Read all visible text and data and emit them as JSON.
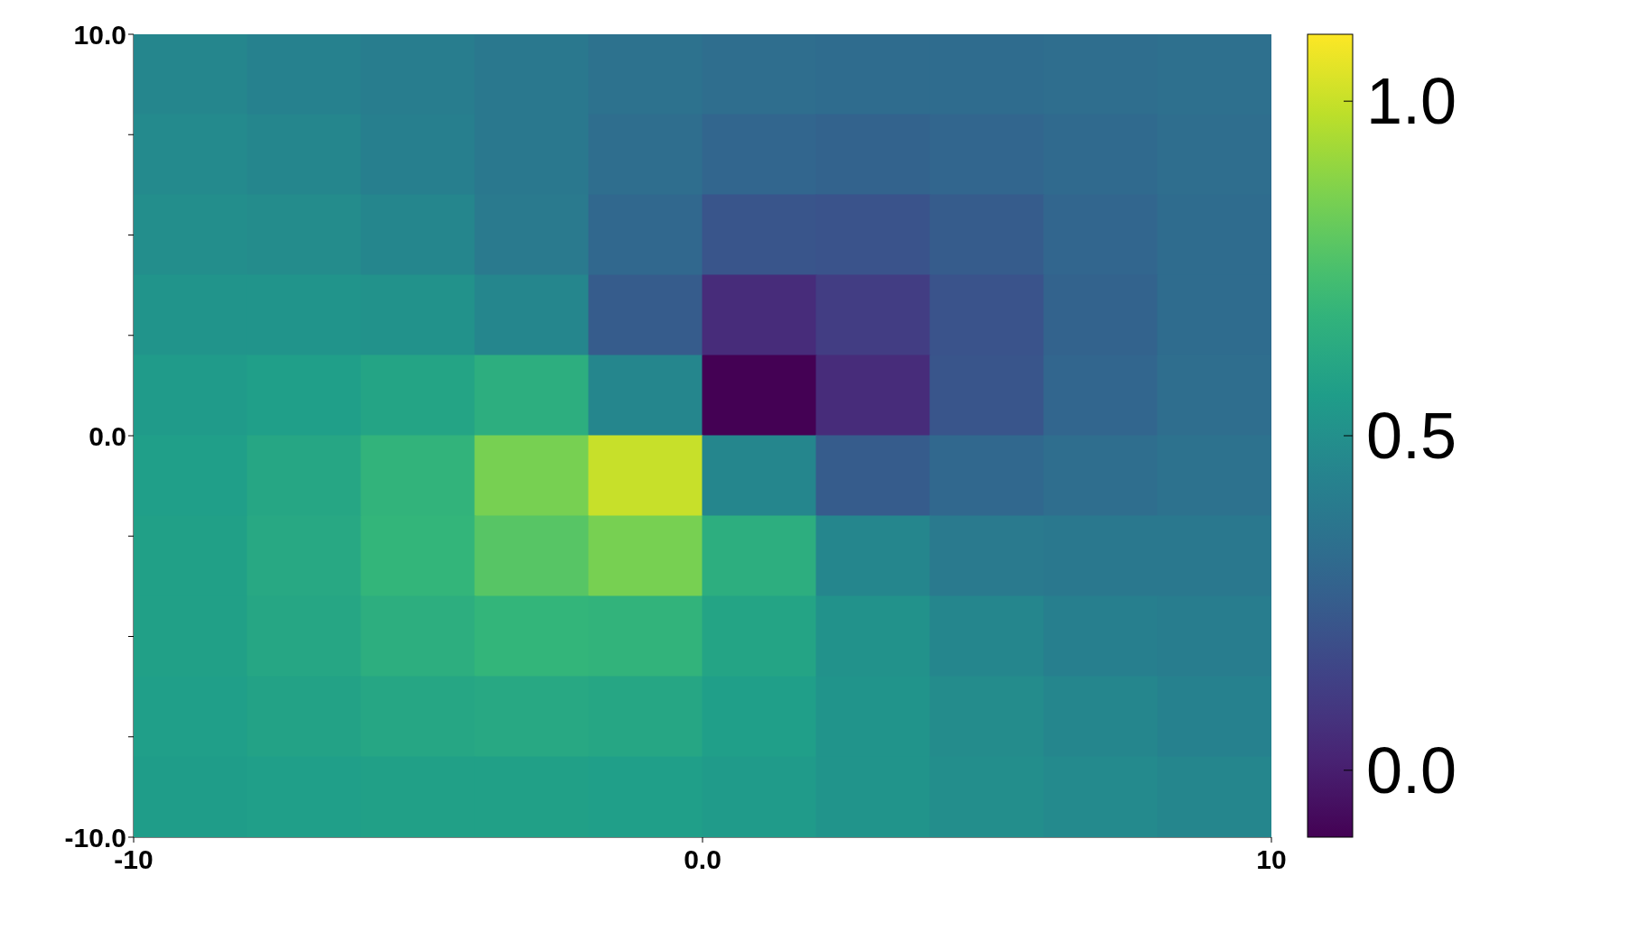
{
  "chart_data": {
    "type": "heatmap",
    "cells": [
      [
        0.45,
        0.43,
        0.41,
        0.38,
        0.35,
        0.33,
        0.32,
        0.32,
        0.33,
        0.34
      ],
      [
        0.47,
        0.45,
        0.42,
        0.38,
        0.33,
        0.29,
        0.28,
        0.29,
        0.31,
        0.33
      ],
      [
        0.49,
        0.48,
        0.45,
        0.39,
        0.3,
        0.22,
        0.21,
        0.25,
        0.29,
        0.32
      ],
      [
        0.52,
        0.52,
        0.51,
        0.45,
        0.25,
        0.05,
        0.12,
        0.21,
        0.28,
        0.32
      ],
      [
        0.55,
        0.57,
        0.6,
        0.65,
        0.45,
        -0.1,
        0.05,
        0.22,
        0.29,
        0.33
      ],
      [
        0.57,
        0.61,
        0.68,
        0.85,
        1.0,
        0.45,
        0.25,
        0.3,
        0.33,
        0.35
      ],
      [
        0.58,
        0.62,
        0.69,
        0.78,
        0.85,
        0.65,
        0.45,
        0.39,
        0.38,
        0.38
      ],
      [
        0.58,
        0.61,
        0.65,
        0.69,
        0.68,
        0.6,
        0.51,
        0.45,
        0.42,
        0.41
      ],
      [
        0.57,
        0.59,
        0.61,
        0.62,
        0.61,
        0.57,
        0.52,
        0.48,
        0.45,
        0.43
      ],
      [
        0.56,
        0.57,
        0.58,
        0.58,
        0.57,
        0.55,
        0.52,
        0.49,
        0.47,
        0.45
      ]
    ],
    "xlim": [
      -10,
      10
    ],
    "xticks": [
      {
        "value": -10,
        "label": "-10"
      },
      {
        "value": 0,
        "label": "0.0"
      },
      {
        "value": 10,
        "label": "10"
      }
    ],
    "ylim": [
      -10,
      10
    ],
    "yticks": [
      {
        "value": -10,
        "label": "-10.0"
      },
      {
        "value": -7.5,
        "label": null
      },
      {
        "value": -5,
        "label": null
      },
      {
        "value": -2.5,
        "label": null
      },
      {
        "value": 0,
        "label": "0.0"
      },
      {
        "value": 2.5,
        "label": null
      },
      {
        "value": 5,
        "label": null
      },
      {
        "value": 7.5,
        "label": null
      },
      {
        "value": 10,
        "label": "10.0"
      }
    ],
    "clim": [
      -0.1,
      1.1
    ],
    "cticks": [
      {
        "value": 0,
        "label": "0.0"
      },
      {
        "value": 0.5,
        "label": "0.5"
      },
      {
        "value": 1,
        "label": "1.0"
      }
    ]
  }
}
